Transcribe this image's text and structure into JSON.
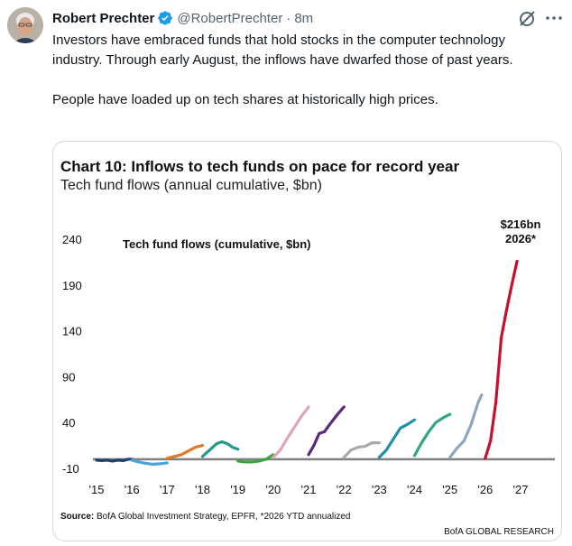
{
  "tweet": {
    "author_name": "Robert Prechter",
    "handle": "@RobertPrechter",
    "separator": "·",
    "time": "8m",
    "paragraphs": [
      "Investors have embraced funds that hold stocks in the computer technology industry. Through early August, the inflows have dwarfed those of past years.",
      "People have loaded up on tech shares at historically high prices."
    ],
    "colors": {
      "verified": "#1d9bf0",
      "muted": "#536471"
    },
    "icons": [
      "verified-badge-icon",
      "grok-icon",
      "more-options-icon"
    ]
  },
  "chart_data": {
    "type": "line",
    "title": "Chart 10: Inflows to tech funds on pace for record year",
    "subtitle": "Tech fund flows (annual cumulative, $bn)",
    "inner_label": "Tech fund flows (cumulative, $bn)",
    "yticks": [
      "240",
      "190",
      "140",
      "90",
      "40",
      "-10"
    ],
    "xticks": [
      "'15",
      "'16",
      "'17",
      "'18",
      "'19",
      "'20",
      "'21",
      "'22",
      "'23",
      "'24",
      "'25",
      "'26",
      "'27"
    ],
    "ylim": [
      -10,
      240
    ],
    "xlim": [
      2015,
      2027
    ],
    "baseline": 0,
    "annotation": {
      "line1": "$216bn",
      "line2": "2026*"
    },
    "source_label": "Source:",
    "source_text": "BofA Global Investment Strategy, EPFR, *2026 YTD annualized",
    "brand": "BofA GLOBAL RESEARCH",
    "series": [
      {
        "year": "2015",
        "color": "#1f3f6e",
        "points": [
          [
            2015.0,
            -1
          ],
          [
            2015.15,
            -1.5
          ],
          [
            2015.3,
            -1
          ],
          [
            2015.45,
            -2
          ],
          [
            2015.6,
            -1
          ],
          [
            2015.75,
            -1.5
          ],
          [
            2015.9,
            0
          ],
          [
            2016.0,
            0
          ]
        ]
      },
      {
        "year": "2016",
        "color": "#4aa3d8",
        "points": [
          [
            2016.0,
            -1
          ],
          [
            2016.2,
            -3
          ],
          [
            2016.4,
            -4.5
          ],
          [
            2016.6,
            -5.5
          ],
          [
            2016.8,
            -5
          ],
          [
            2017.0,
            -4
          ]
        ]
      },
      {
        "year": "2017",
        "color": "#e07a2b",
        "points": [
          [
            2017.0,
            1
          ],
          [
            2017.2,
            3
          ],
          [
            2017.4,
            5
          ],
          [
            2017.6,
            9
          ],
          [
            2017.8,
            13
          ],
          [
            2018.0,
            15
          ]
        ]
      },
      {
        "year": "2018",
        "color": "#239a8c",
        "points": [
          [
            2018.0,
            3
          ],
          [
            2018.2,
            10
          ],
          [
            2018.4,
            17
          ],
          [
            2018.55,
            19
          ],
          [
            2018.7,
            17
          ],
          [
            2018.85,
            13
          ],
          [
            2019.0,
            11
          ]
        ]
      },
      {
        "year": "2019",
        "color": "#3aa63a",
        "points": [
          [
            2019.0,
            -2
          ],
          [
            2019.2,
            -3
          ],
          [
            2019.4,
            -3
          ],
          [
            2019.6,
            -2
          ],
          [
            2019.8,
            0
          ],
          [
            2020.0,
            5
          ]
        ]
      },
      {
        "year": "2020",
        "color": "#e0a5b5",
        "points": [
          [
            2020.0,
            2
          ],
          [
            2020.2,
            10
          ],
          [
            2020.4,
            23
          ],
          [
            2020.6,
            35
          ],
          [
            2020.8,
            47
          ],
          [
            2021.0,
            57
          ]
        ]
      },
      {
        "year": "2021",
        "color": "#5a2a78",
        "points": [
          [
            2021.0,
            5
          ],
          [
            2021.15,
            15
          ],
          [
            2021.3,
            28
          ],
          [
            2021.45,
            30
          ],
          [
            2021.6,
            38
          ],
          [
            2021.8,
            48
          ],
          [
            2022.0,
            57
          ]
        ]
      },
      {
        "year": "2022",
        "color": "#a9a9a9",
        "points": [
          [
            2022.0,
            2
          ],
          [
            2022.2,
            10
          ],
          [
            2022.4,
            13
          ],
          [
            2022.6,
            14
          ],
          [
            2022.8,
            18
          ],
          [
            2023.0,
            18
          ]
        ]
      },
      {
        "year": "2023",
        "color": "#1f8fa8",
        "points": [
          [
            2023.0,
            2
          ],
          [
            2023.2,
            10
          ],
          [
            2023.4,
            22
          ],
          [
            2023.6,
            34
          ],
          [
            2023.8,
            38
          ],
          [
            2024.0,
            43
          ]
        ]
      },
      {
        "year": "2024",
        "color": "#2fa880",
        "points": [
          [
            2024.0,
            4
          ],
          [
            2024.2,
            18
          ],
          [
            2024.4,
            30
          ],
          [
            2024.6,
            40
          ],
          [
            2024.8,
            45
          ],
          [
            2025.0,
            49
          ]
        ]
      },
      {
        "year": "2025",
        "color": "#8ea4c0",
        "points": [
          [
            2025.0,
            2
          ],
          [
            2025.2,
            12
          ],
          [
            2025.4,
            20
          ],
          [
            2025.6,
            38
          ],
          [
            2025.8,
            62
          ],
          [
            2025.9,
            70
          ]
        ]
      },
      {
        "year": "2026",
        "color": "#c8102e",
        "points": [
          [
            2026.0,
            1
          ],
          [
            2026.15,
            20
          ],
          [
            2026.3,
            62
          ],
          [
            2026.45,
            132
          ],
          [
            2026.6,
            162
          ],
          [
            2026.75,
            190
          ],
          [
            2026.9,
            216
          ]
        ]
      }
    ],
    "axis_color": "#7f7f7f"
  }
}
